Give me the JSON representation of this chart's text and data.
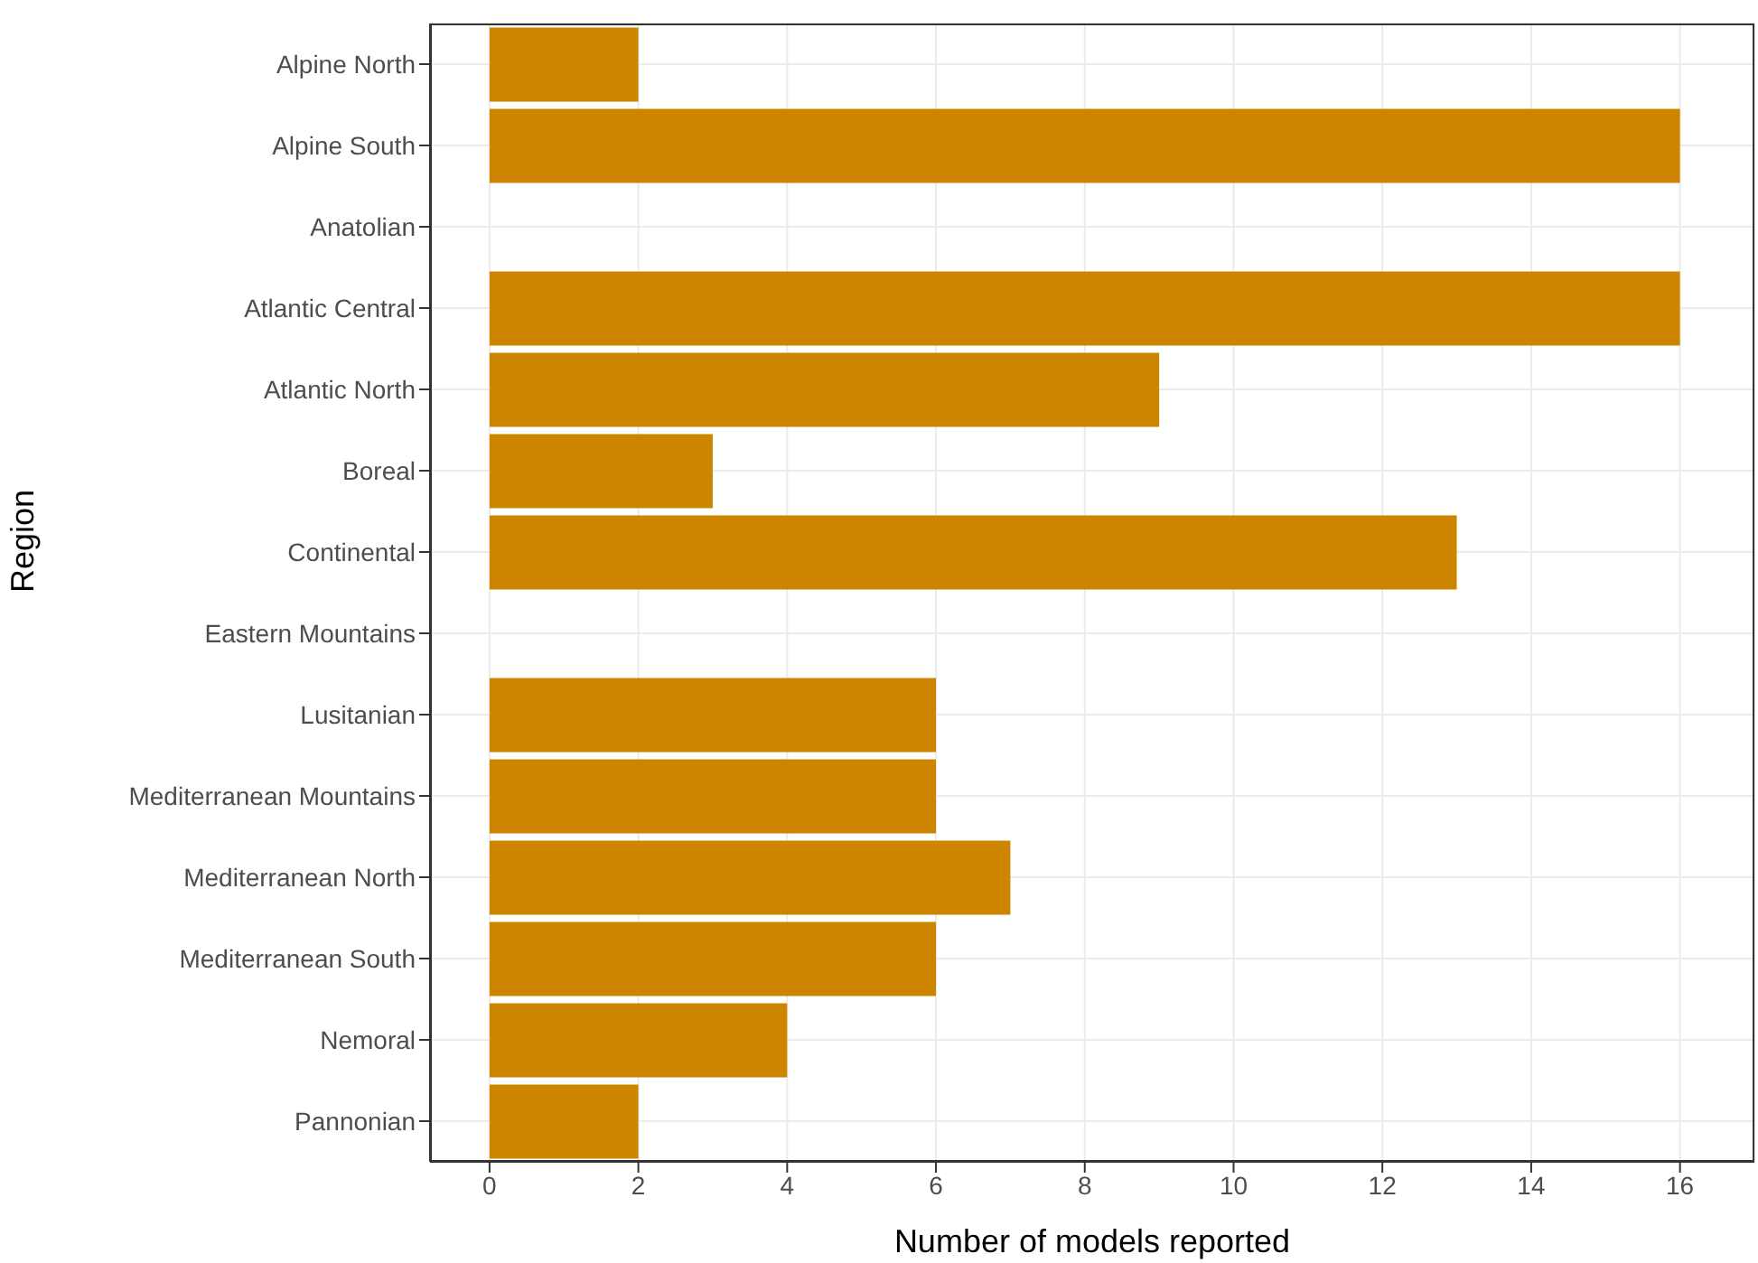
{
  "chart_data": {
    "type": "bar",
    "orientation": "horizontal",
    "xlabel": "Number of models reported",
    "ylabel": "Region",
    "categories": [
      "Alpine North",
      "Alpine South",
      "Anatolian",
      "Atlantic Central",
      "Atlantic North",
      "Boreal",
      "Continental",
      "Eastern Mountains",
      "Lusitanian",
      "Mediterranean Mountains",
      "Mediterranean North",
      "Mediterranean South",
      "Nemoral",
      "Pannonian"
    ],
    "values": [
      2,
      16,
      0,
      16,
      9,
      3,
      13,
      0,
      6,
      6,
      7,
      6,
      4,
      2
    ],
    "color": "#cd8500",
    "xlim": [
      -0.8,
      17
    ],
    "xticks": [
      0,
      2,
      4,
      6,
      8,
      10,
      12,
      14,
      16
    ],
    "grid": true
  }
}
